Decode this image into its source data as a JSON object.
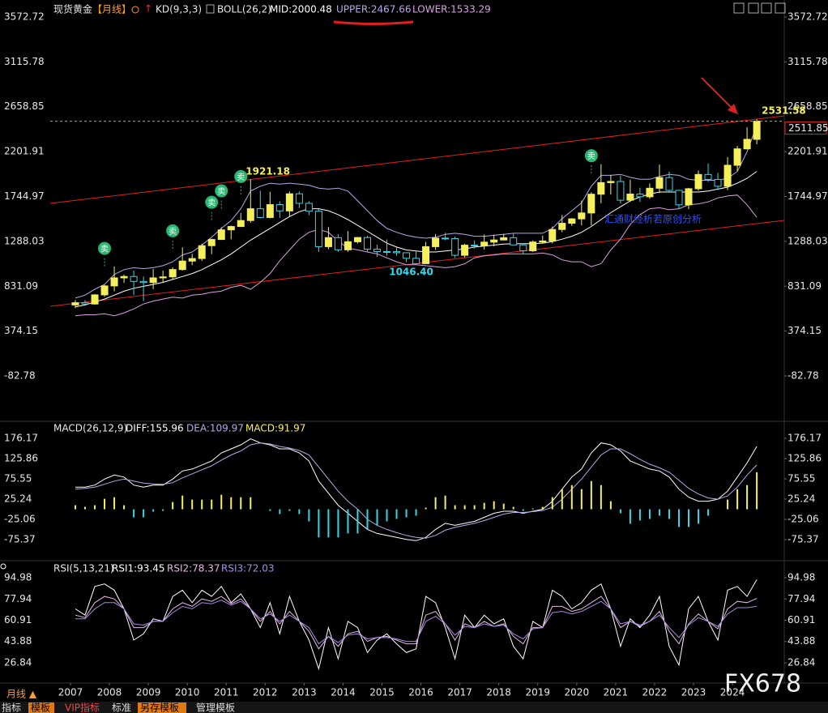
{
  "header": {
    "instrument": "现货黄金",
    "period": "【月线】",
    "kd": "KD(9,3,3)",
    "boll": "BOLL(26,2)"
  },
  "chart_data": [
    {
      "type": "candlestick",
      "title": "现货黄金",
      "x": [
        2007.125,
        2007.375,
        2007.625,
        2007.875,
        2008.125,
        2008.375,
        2008.625,
        2008.875,
        2009.125,
        2009.375,
        2009.625,
        2009.875,
        2010.125,
        2010.375,
        2010.625,
        2010.875,
        2011.125,
        2011.375,
        2011.625,
        2011.875,
        2012.125,
        2012.375,
        2012.625,
        2012.875,
        2013.125,
        2013.375,
        2013.625,
        2013.875,
        2014.125,
        2014.375,
        2014.625,
        2014.875,
        2015.125,
        2015.375,
        2015.625,
        2015.875,
        2016.125,
        2016.375,
        2016.625,
        2016.875,
        2017.125,
        2017.375,
        2017.625,
        2017.875,
        2018.125,
        2018.375,
        2018.625,
        2018.875,
        2019.125,
        2019.375,
        2019.625,
        2019.875,
        2020.125,
        2020.375,
        2020.625,
        2020.875,
        2021.125,
        2021.375,
        2021.625,
        2021.875,
        2022.125,
        2022.375,
        2022.625,
        2022.875,
        2023.125,
        2023.375,
        2023.625,
        2023.875,
        2024.125,
        2024.375,
        2024.625
      ],
      "open": [
        640,
        663,
        650,
        743,
        834,
        916,
        930,
        880,
        869,
        916,
        926,
        1001,
        1087,
        1113,
        1244,
        1307,
        1405,
        1439,
        1500,
        1620,
        1531,
        1662,
        1598,
        1772,
        1675,
        1595,
        1234,
        1326,
        1202,
        1284,
        1327,
        1208,
        1184,
        1183,
        1172,
        1115,
        1061,
        1234,
        1321,
        1316,
        1146,
        1249,
        1241,
        1280,
        1302,
        1325,
        1252,
        1192,
        1281,
        1292,
        1409,
        1472,
        1517,
        1577,
        1768,
        1886,
        1898,
        1707,
        1770,
        1742,
        1829,
        1937,
        1807,
        1660,
        1824,
        1969,
        1919,
        1849,
        2063,
        2230,
        2327
      ],
      "high": [
        690,
        690,
        750,
        845,
        1032,
        950,
        990,
        930,
        1006,
        990,
        1024,
        1227,
        1161,
        1265,
        1315,
        1431,
        1447,
        1577,
        1921.18,
        1803,
        1792,
        1696,
        1796,
        1796,
        1697,
        1616,
        1434,
        1361,
        1392,
        1332,
        1345,
        1255,
        1307,
        1224,
        1170,
        1191,
        1282,
        1362,
        1375,
        1337,
        1264,
        1296,
        1357,
        1357,
        1365,
        1366,
        1265,
        1298,
        1346,
        1439,
        1557,
        1525,
        1703,
        1789,
        2075,
        1965,
        1959,
        1916,
        1834,
        1877,
        2070,
        1998,
        1814,
        1833,
        2009,
        2081,
        1987,
        2146,
        2260,
        2450,
        2531.58
      ],
      "low": [
        608,
        642,
        642,
        723,
        780,
        865,
        740,
        681,
        802,
        865,
        904,
        990,
        1045,
        1088,
        1157,
        1313,
        1309,
        1462,
        1478,
        1523,
        1523,
        1527,
        1540,
        1627,
        1555,
        1180,
        1207,
        1182,
        1182,
        1267,
        1183,
        1131,
        1142,
        1142,
        1077,
        1046.4,
        1061,
        1200,
        1300,
        1122,
        1123,
        1214,
        1204,
        1236,
        1302,
        1250,
        1160,
        1180,
        1266,
        1267,
        1381,
        1445,
        1451,
        1451,
        1676,
        1765,
        1676,
        1690,
        1690,
        1721,
        1780,
        1784,
        1615,
        1616,
        1804,
        1893,
        1810,
        1810,
        2005,
        2225,
        2277
      ],
      "close": [
        663,
        650,
        743,
        834,
        916,
        930,
        880,
        869,
        916,
        926,
        1001,
        1087,
        1113,
        1244,
        1307,
        1405,
        1439,
        1500,
        1620,
        1531,
        1662,
        1598,
        1772,
        1675,
        1595,
        1234,
        1326,
        1202,
        1284,
        1327,
        1208,
        1184,
        1183,
        1172,
        1115,
        1061,
        1234,
        1321,
        1316,
        1146,
        1249,
        1241,
        1280,
        1302,
        1325,
        1252,
        1192,
        1281,
        1292,
        1409,
        1472,
        1517,
        1577,
        1768,
        1886,
        1898,
        1707,
        1770,
        1742,
        1829,
        1937,
        1807,
        1660,
        1824,
        1969,
        1919,
        1849,
        2063,
        2230,
        2327,
        2511.85
      ],
      "up_color": "#f5f05a",
      "down_color": "#2fd9e8",
      "series": [
        {
          "name": "MID:2000.48",
          "color": "#ffffff",
          "values": [
            620,
            640,
            670,
            700,
            740,
            780,
            810,
            830,
            850,
            870,
            900,
            930,
            960,
            1000,
            1050,
            1100,
            1160,
            1230,
            1300,
            1360,
            1420,
            1480,
            1540,
            1590,
            1620,
            1620,
            1600,
            1560,
            1510,
            1450,
            1390,
            1330,
            1270,
            1230,
            1200,
            1190,
            1180,
            1180,
            1190,
            1200,
            1210,
            1230,
            1240,
            1250,
            1260,
            1265,
            1265,
            1265,
            1270,
            1285,
            1310,
            1340,
            1380,
            1440,
            1510,
            1580,
            1640,
            1700,
            1740,
            1770,
            1790,
            1790,
            1790,
            1790,
            1790,
            1800,
            1820,
            1840,
            1880,
            1930,
            2000.48
          ]
        },
        {
          "name": "UPPER:2467.66",
          "color": "#b9a7e6",
          "values": [
            710,
            740,
            800,
            850,
            950,
            1000,
            1020,
            1010,
            1020,
            1040,
            1080,
            1150,
            1180,
            1250,
            1330,
            1420,
            1500,
            1620,
            1800,
            1850,
            1880,
            1870,
            1880,
            1870,
            1860,
            1830,
            1820,
            1830,
            1800,
            1700,
            1600,
            1500,
            1420,
            1380,
            1350,
            1330,
            1320,
            1330,
            1360,
            1370,
            1360,
            1340,
            1340,
            1350,
            1360,
            1370,
            1370,
            1370,
            1370,
            1420,
            1520,
            1600,
            1680,
            1850,
            1960,
            1960,
            1970,
            1940,
            1920,
            1920,
            1950,
            1970,
            1960,
            1920,
            1910,
            1910,
            1910,
            1930,
            2000,
            2200,
            2467.66
          ]
        },
        {
          "name": "LOWER:1533.29",
          "color": "#d9a0e0",
          "values": [
            530,
            540,
            540,
            550,
            530,
            560,
            600,
            650,
            680,
            700,
            720,
            710,
            740,
            750,
            770,
            780,
            820,
            840,
            800,
            870,
            960,
            1090,
            1200,
            1310,
            1380,
            1410,
            1380,
            1290,
            1220,
            1200,
            1180,
            1160,
            1120,
            1080,
            1050,
            1050,
            1040,
            1030,
            1020,
            1030,
            1060,
            1120,
            1140,
            1150,
            1160,
            1160,
            1160,
            1160,
            1170,
            1150,
            1100,
            1080,
            1080,
            1030,
            1060,
            1200,
            1310,
            1460,
            1560,
            1620,
            1630,
            1610,
            1620,
            1660,
            1670,
            1690,
            1730,
            1750,
            1760,
            1660,
            1533.29
          ]
        }
      ],
      "ylim": [
        -82.78,
        3572.72
      ],
      "yticks": [
        3572.72,
        3115.78,
        2658.85,
        2201.91,
        1744.97,
        1288.03,
        831.09,
        374.15,
        -82.78
      ],
      "xlim": [
        2006.48,
        2025.33
      ],
      "annotations": [
        "1921.18",
        "1046.40",
        "2531.58"
      ],
      "last_price_label": "2511.85",
      "sell_signal": "卖",
      "watermark_text": "汇通财经析若原创分析"
    },
    {
      "type": "macd",
      "title": "MACD(26,12,9)",
      "series": [
        {
          "name": "DIFF:155.96",
          "color": "#ffffff",
          "values": [
            55,
            55,
            60,
            75,
            85,
            80,
            60,
            55,
            60,
            60,
            75,
            95,
            100,
            110,
            120,
            140,
            150,
            160,
            175,
            165,
            160,
            150,
            150,
            140,
            120,
            70,
            40,
            10,
            -10,
            -30,
            -50,
            -60,
            -65,
            -70,
            -75,
            -78,
            -70,
            -50,
            -35,
            -40,
            -35,
            -30,
            -20,
            -10,
            -5,
            -5,
            -10,
            -5,
            0,
            20,
            50,
            80,
            100,
            140,
            165,
            160,
            145,
            120,
            110,
            100,
            95,
            80,
            50,
            30,
            20,
            20,
            25,
            45,
            80,
            115,
            155.96
          ]
        },
        {
          "name": "DEA:109.97",
          "color": "#b9a7e6",
          "values": [
            50,
            52,
            55,
            62,
            70,
            75,
            70,
            65,
            63,
            62,
            66,
            78,
            88,
            98,
            108,
            122,
            135,
            145,
            160,
            165,
            162,
            156,
            152,
            146,
            135,
            105,
            75,
            45,
            20,
            0,
            -25,
            -40,
            -50,
            -58,
            -65,
            -70,
            -72,
            -65,
            -52,
            -45,
            -40,
            -35,
            -28,
            -20,
            -12,
            -8,
            -8,
            -6,
            -3,
            5,
            25,
            50,
            75,
            105,
            135,
            150,
            150,
            138,
            124,
            112,
            103,
            92,
            72,
            52,
            38,
            28,
            25,
            33,
            55,
            85,
            109.97
          ]
        },
        {
          "name": "MACD:91.97",
          "type": "bar",
          "color": "#f5f05a",
          "negative_color": "#2fd9e8",
          "values": [
            10,
            6,
            10,
            26,
            30,
            10,
            -20,
            -20,
            -6,
            -4,
            18,
            34,
            24,
            24,
            24,
            36,
            30,
            30,
            30,
            0,
            -4,
            -12,
            -4,
            -12,
            -30,
            -70,
            -70,
            -70,
            -60,
            -60,
            -50,
            -40,
            -30,
            -24,
            -20,
            -16,
            4,
            30,
            34,
            10,
            10,
            10,
            16,
            20,
            14,
            6,
            -4,
            2,
            6,
            30,
            50,
            60,
            50,
            70,
            60,
            20,
            -10,
            -36,
            -28,
            -24,
            -16,
            -24,
            -44,
            -44,
            -36,
            -16,
            0,
            24,
            50,
            60,
            91.97
          ]
        }
      ],
      "ylim": [
        -75.37,
        176.17
      ],
      "yticks": [
        176.17,
        125.86,
        75.55,
        25.24,
        -25.06,
        -75.37
      ]
    },
    {
      "type": "rsi",
      "title": "RSI(5,13,21)",
      "series": [
        {
          "name": "RSI1:93.45",
          "color": "#ffffff",
          "values": [
            70,
            65,
            88,
            90,
            85,
            70,
            45,
            50,
            62,
            60,
            80,
            85,
            75,
            85,
            80,
            88,
            75,
            82,
            70,
            55,
            75,
            50,
            80,
            60,
            45,
            22,
            55,
            30,
            60,
            55,
            35,
            45,
            50,
            42,
            35,
            38,
            80,
            75,
            55,
            30,
            65,
            55,
            65,
            58,
            62,
            40,
            30,
            60,
            55,
            85,
            80,
            70,
            75,
            85,
            90,
            70,
            40,
            62,
            55,
            65,
            80,
            40,
            25,
            70,
            80,
            60,
            45,
            85,
            88,
            80,
            93.45
          ]
        },
        {
          "name": "RSI2:78.37",
          "color": "#e6b8e6",
          "values": [
            65,
            63,
            75,
            80,
            78,
            70,
            55,
            55,
            60,
            60,
            70,
            75,
            72,
            78,
            76,
            80,
            74,
            78,
            70,
            60,
            68,
            58,
            68,
            60,
            52,
            38,
            48,
            40,
            50,
            52,
            44,
            47,
            48,
            45,
            42,
            42,
            65,
            68,
            58,
            45,
            58,
            55,
            60,
            56,
            58,
            48,
            42,
            55,
            55,
            72,
            72,
            68,
            70,
            75,
            80,
            70,
            55,
            60,
            56,
            60,
            68,
            52,
            42,
            58,
            66,
            60,
            54,
            70,
            76,
            75,
            78.37
          ]
        },
        {
          "name": "RSI3:72.03",
          "color": "#a58be0",
          "values": [
            62,
            62,
            70,
            75,
            75,
            70,
            58,
            57,
            60,
            60,
            67,
            72,
            70,
            75,
            74,
            77,
            73,
            76,
            70,
            62,
            66,
            60,
            65,
            60,
            55,
            42,
            48,
            43,
            49,
            50,
            46,
            47,
            47,
            46,
            44,
            44,
            60,
            64,
            58,
            49,
            56,
            55,
            58,
            56,
            57,
            50,
            46,
            54,
            55,
            67,
            68,
            66,
            68,
            72,
            76,
            70,
            58,
            60,
            57,
            60,
            65,
            55,
            47,
            57,
            63,
            60,
            56,
            66,
            71,
            71,
            72.03
          ]
        }
      ],
      "ylim": [
        26.84,
        94.98
      ],
      "yticks": [
        94.98,
        77.94,
        60.91,
        43.88,
        26.84
      ],
      "xticks": [
        2007,
        2008,
        2009,
        2010,
        2011,
        2012,
        2013,
        2014,
        2015,
        2016,
        2017,
        2018,
        2019,
        2020,
        2021,
        2022,
        2023,
        2024
      ]
    }
  ],
  "footer": {
    "period_switch": "月线 ▲",
    "toolbar": [
      "指标",
      "模板",
      "VIP指标",
      "标准",
      "另存模板",
      "管理模板"
    ],
    "logo": "FX678"
  }
}
